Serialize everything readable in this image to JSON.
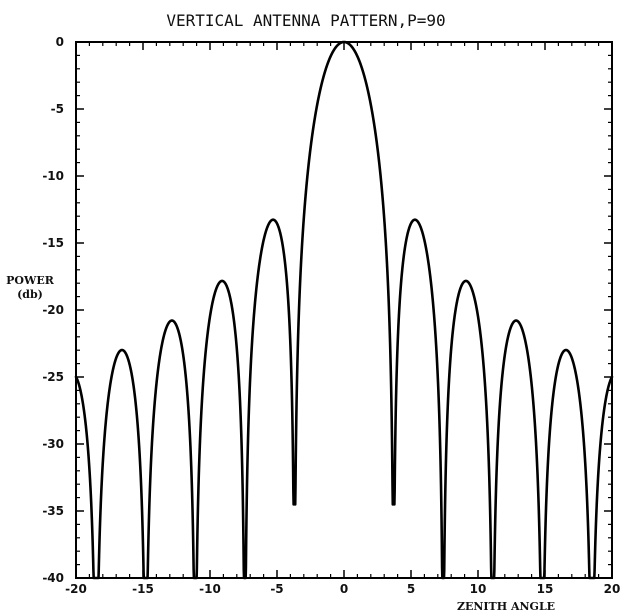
{
  "chart_data": {
    "type": "line",
    "title": "VERTICAL ANTENNA PATTERN,P=90",
    "xlabel": "ZENITH ANGLE",
    "ylabel": "POWER\n(db)",
    "ylabel_lines": [
      "POWER",
      "(db)"
    ],
    "xlim": [
      -20,
      20
    ],
    "ylim": [
      -40,
      0
    ],
    "xticks": [
      -20,
      -15,
      -10,
      -5,
      0,
      5,
      10,
      15,
      20
    ],
    "yticks": [
      0,
      -5,
      -10,
      -15,
      -20,
      -25,
      -30,
      -35,
      -40
    ],
    "xtick_labels": [
      "-20",
      "-15",
      "-10",
      "-5",
      "0",
      "5",
      "10",
      "15",
      "20"
    ],
    "ytick_labels": [
      "0",
      "-5",
      "-10",
      "-15",
      "-20",
      "-25",
      "-30",
      "-35",
      "-40"
    ],
    "grid": false,
    "series": [
      {
        "description": "sinc-squared antenna power pattern",
        "line_color": "#000000",
        "peak_x": 0,
        "peak_y": 0,
        "first_null_x": 3.7,
        "first_null_min_y": -34.5,
        "sidelobe_peaks": [
          {
            "x": -19.9,
            "y": -26.8
          },
          {
            "x": -16.1,
            "y": -24.0
          },
          {
            "x": -12.3,
            "y": -21.4
          },
          {
            "x": -8.7,
            "y": -18.2
          },
          {
            "x": -5.0,
            "y": -13.5
          },
          {
            "x": 5.0,
            "y": -13.5
          },
          {
            "x": 8.7,
            "y": -18.2
          },
          {
            "x": 12.3,
            "y": -21.4
          },
          {
            "x": 16.1,
            "y": -24.0
          },
          {
            "x": 19.9,
            "y": -26.6
          }
        ]
      }
    ]
  }
}
